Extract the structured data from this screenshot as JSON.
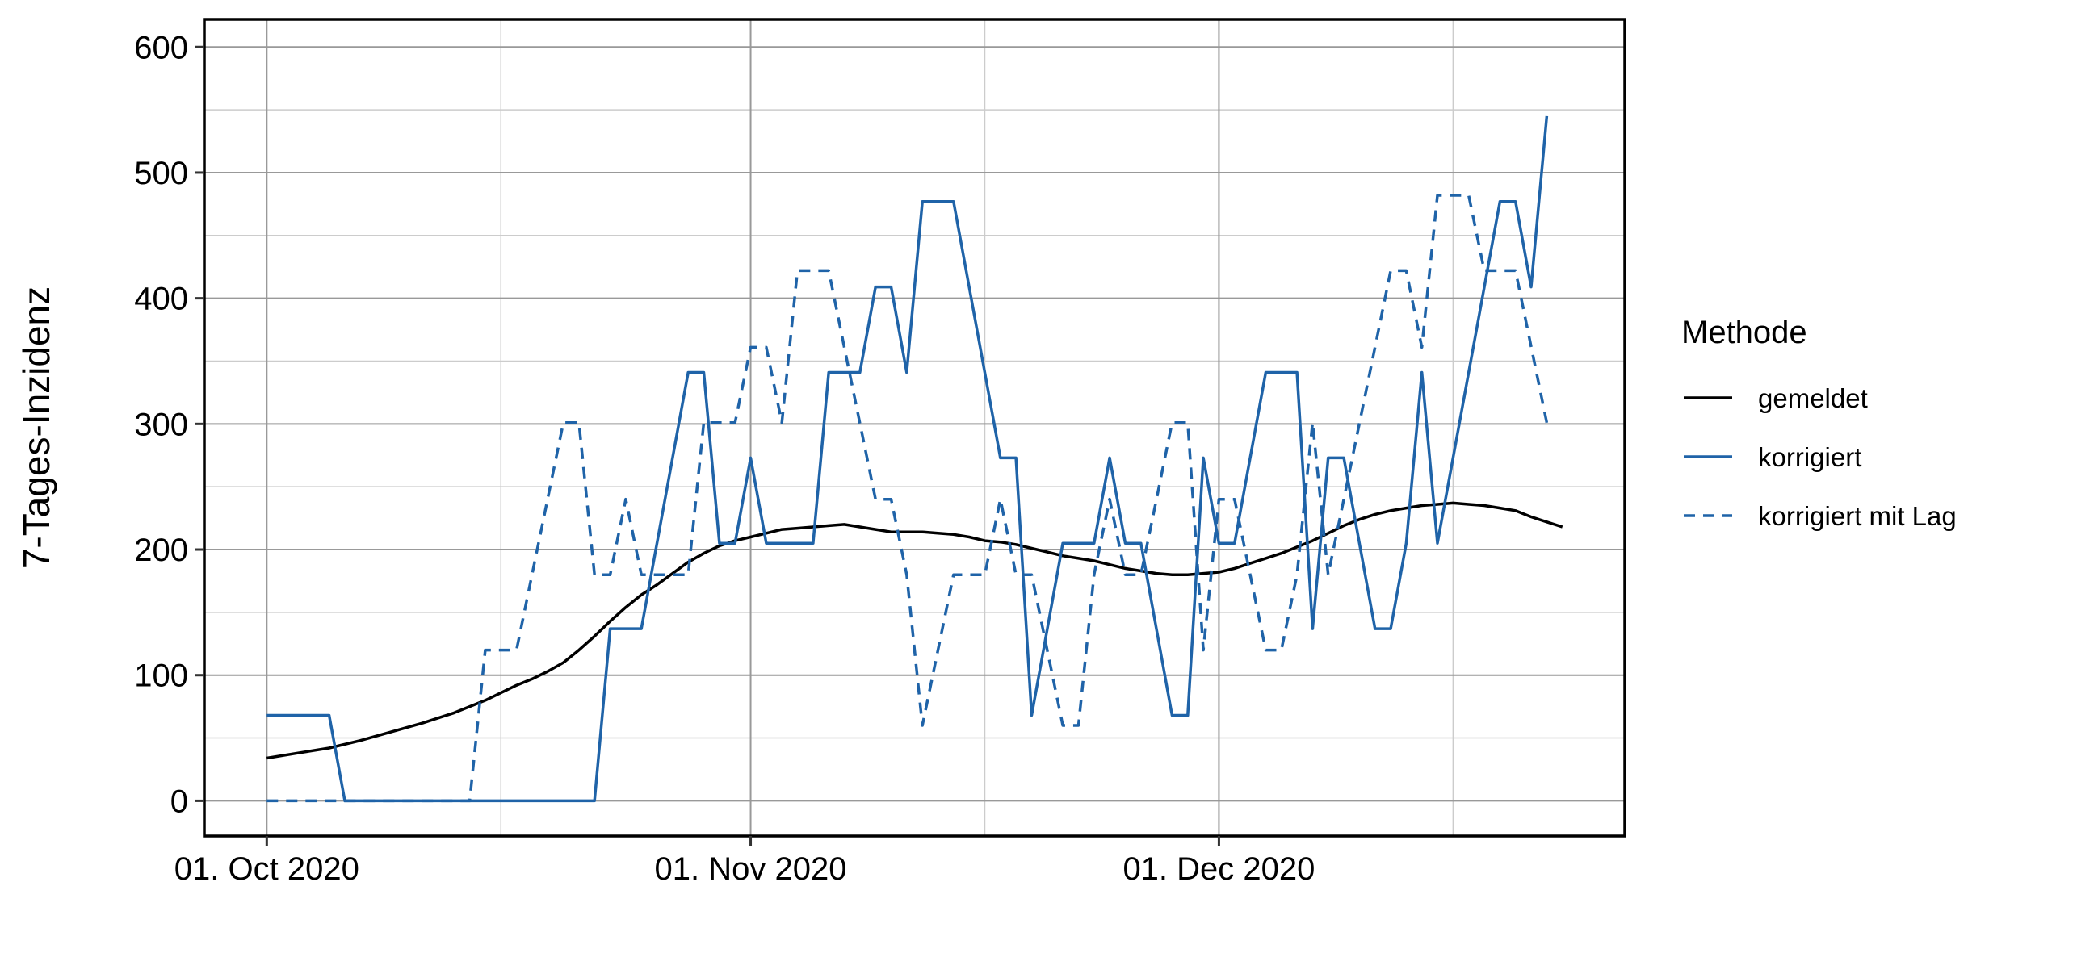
{
  "chart_data": {
    "type": "line",
    "ylabel": "7-Tages-Inzidenz",
    "xlabel": "",
    "x_domain": [
      "2020-09-27",
      "2020-12-27"
    ],
    "ylim": [
      -28,
      622
    ],
    "y_ticks": [
      0,
      100,
      200,
      300,
      400,
      500,
      600
    ],
    "x_ticks": [
      {
        "date": "2020-10-01",
        "label": "01. Oct 2020"
      },
      {
        "date": "2020-11-01",
        "label": "01. Nov 2020"
      },
      {
        "date": "2020-12-01",
        "label": "01. Dec 2020"
      }
    ],
    "x_minor_ticks": [
      "2020-10-16",
      "2020-11-16",
      "2020-12-16"
    ],
    "grid": true,
    "legend": {
      "title": "Methode",
      "position": "right"
    },
    "series": [
      {
        "name": "gemeldet",
        "color": "#000000",
        "dash": "solid",
        "points": [
          [
            "2020-10-01",
            34
          ],
          [
            "2020-10-03",
            38
          ],
          [
            "2020-10-05",
            42
          ],
          [
            "2020-10-07",
            48
          ],
          [
            "2020-10-09",
            55
          ],
          [
            "2020-10-11",
            62
          ],
          [
            "2020-10-13",
            70
          ],
          [
            "2020-10-14",
            75
          ],
          [
            "2020-10-15",
            80
          ],
          [
            "2020-10-17",
            92
          ],
          [
            "2020-10-18",
            97
          ],
          [
            "2020-10-19",
            103
          ],
          [
            "2020-10-20",
            110
          ],
          [
            "2020-10-21",
            120
          ],
          [
            "2020-10-22",
            131
          ],
          [
            "2020-10-23",
            143
          ],
          [
            "2020-10-24",
            154
          ],
          [
            "2020-10-25",
            164
          ],
          [
            "2020-10-26",
            172
          ],
          [
            "2020-10-27",
            181
          ],
          [
            "2020-10-28",
            190
          ],
          [
            "2020-10-29",
            197
          ],
          [
            "2020-10-30",
            203
          ],
          [
            "2020-10-31",
            207
          ],
          [
            "2020-11-01",
            210
          ],
          [
            "2020-11-02",
            213
          ],
          [
            "2020-11-03",
            216
          ],
          [
            "2020-11-04",
            217
          ],
          [
            "2020-11-05",
            218
          ],
          [
            "2020-11-06",
            219
          ],
          [
            "2020-11-07",
            220
          ],
          [
            "2020-11-08",
            218
          ],
          [
            "2020-11-09",
            216
          ],
          [
            "2020-11-10",
            214
          ],
          [
            "2020-11-12",
            214
          ],
          [
            "2020-11-13",
            213
          ],
          [
            "2020-11-14",
            212
          ],
          [
            "2020-11-15",
            210
          ],
          [
            "2020-11-16",
            207
          ],
          [
            "2020-11-17",
            206
          ],
          [
            "2020-11-18",
            204
          ],
          [
            "2020-11-19",
            201
          ],
          [
            "2020-11-20",
            198
          ],
          [
            "2020-11-21",
            195
          ],
          [
            "2020-11-22",
            193
          ],
          [
            "2020-11-23",
            191
          ],
          [
            "2020-11-24",
            188
          ],
          [
            "2020-11-25",
            185
          ],
          [
            "2020-11-26",
            183
          ],
          [
            "2020-11-27",
            181
          ],
          [
            "2020-11-28",
            180
          ],
          [
            "2020-11-29",
            180
          ],
          [
            "2020-11-30",
            181
          ],
          [
            "2020-12-01",
            182
          ],
          [
            "2020-12-02",
            185
          ],
          [
            "2020-12-03",
            189
          ],
          [
            "2020-12-04",
            193
          ],
          [
            "2020-12-05",
            197
          ],
          [
            "2020-12-06",
            202
          ],
          [
            "2020-12-07",
            207
          ],
          [
            "2020-12-08",
            213
          ],
          [
            "2020-12-09",
            219
          ],
          [
            "2020-12-10",
            224
          ],
          [
            "2020-12-11",
            228
          ],
          [
            "2020-12-12",
            231
          ],
          [
            "2020-12-13",
            233
          ],
          [
            "2020-12-14",
            235
          ],
          [
            "2020-12-15",
            236
          ],
          [
            "2020-12-16",
            237
          ],
          [
            "2020-12-17",
            236
          ],
          [
            "2020-12-18",
            235
          ],
          [
            "2020-12-19",
            233
          ],
          [
            "2020-12-20",
            231
          ],
          [
            "2020-12-21",
            226
          ],
          [
            "2020-12-22",
            222
          ],
          [
            "2020-12-23",
            218
          ]
        ]
      },
      {
        "name": "korrigiert",
        "color": "#1f63a8",
        "dash": "solid",
        "points": [
          [
            "2020-10-01",
            68
          ],
          [
            "2020-10-05",
            68
          ],
          [
            "2020-10-06",
            0
          ],
          [
            "2020-10-22",
            0
          ],
          [
            "2020-10-23",
            137
          ],
          [
            "2020-10-25",
            137
          ],
          [
            "2020-10-28",
            341
          ],
          [
            "2020-10-29",
            341
          ],
          [
            "2020-10-30",
            205
          ],
          [
            "2020-10-31",
            205
          ],
          [
            "2020-11-01",
            273
          ],
          [
            "2020-11-02",
            205
          ],
          [
            "2020-11-05",
            205
          ],
          [
            "2020-11-06",
            341
          ],
          [
            "2020-11-08",
            341
          ],
          [
            "2020-11-09",
            409
          ],
          [
            "2020-11-10",
            409
          ],
          [
            "2020-11-11",
            341
          ],
          [
            "2020-11-12",
            477
          ],
          [
            "2020-11-14",
            477
          ],
          [
            "2020-11-17",
            273
          ],
          [
            "2020-11-18",
            273
          ],
          [
            "2020-11-19",
            68
          ],
          [
            "2020-11-21",
            205
          ],
          [
            "2020-11-23",
            205
          ],
          [
            "2020-11-24",
            273
          ],
          [
            "2020-11-25",
            205
          ],
          [
            "2020-11-26",
            205
          ],
          [
            "2020-11-28",
            68
          ],
          [
            "2020-11-29",
            68
          ],
          [
            "2020-11-30",
            273
          ],
          [
            "2020-12-01",
            205
          ],
          [
            "2020-12-02",
            205
          ],
          [
            "2020-12-04",
            341
          ],
          [
            "2020-12-06",
            341
          ],
          [
            "2020-12-07",
            137
          ],
          [
            "2020-12-08",
            273
          ],
          [
            "2020-12-09",
            273
          ],
          [
            "2020-12-11",
            137
          ],
          [
            "2020-12-12",
            137
          ],
          [
            "2020-12-13",
            205
          ],
          [
            "2020-12-14",
            341
          ],
          [
            "2020-12-15",
            205
          ],
          [
            "2020-12-19",
            477
          ],
          [
            "2020-12-20",
            477
          ],
          [
            "2020-12-21",
            409
          ],
          [
            "2020-12-22",
            545
          ]
        ]
      },
      {
        "name": "korrigiert mit Lag",
        "color": "#1f63a8",
        "dash": "dashed",
        "points": [
          [
            "2020-10-01",
            0
          ],
          [
            "2020-10-14",
            0
          ],
          [
            "2020-10-15",
            120
          ],
          [
            "2020-10-17",
            120
          ],
          [
            "2020-10-20",
            301
          ],
          [
            "2020-10-21",
            301
          ],
          [
            "2020-10-22",
            180
          ],
          [
            "2020-10-23",
            180
          ],
          [
            "2020-10-24",
            240
          ],
          [
            "2020-10-25",
            180
          ],
          [
            "2020-10-27",
            180
          ],
          [
            "2020-10-28",
            180
          ],
          [
            "2020-10-29",
            301
          ],
          [
            "2020-10-31",
            301
          ],
          [
            "2020-11-01",
            361
          ],
          [
            "2020-11-02",
            361
          ],
          [
            "2020-11-03",
            301
          ],
          [
            "2020-11-04",
            422
          ],
          [
            "2020-11-06",
            422
          ],
          [
            "2020-11-07",
            361
          ],
          [
            "2020-11-09",
            240
          ],
          [
            "2020-11-10",
            240
          ],
          [
            "2020-11-11",
            180
          ],
          [
            "2020-11-12",
            60
          ],
          [
            "2020-11-14",
            180
          ],
          [
            "2020-11-16",
            180
          ],
          [
            "2020-11-17",
            240
          ],
          [
            "2020-11-18",
            180
          ],
          [
            "2020-11-19",
            180
          ],
          [
            "2020-11-20",
            120
          ],
          [
            "2020-11-21",
            60
          ],
          [
            "2020-11-22",
            60
          ],
          [
            "2020-11-23",
            180
          ],
          [
            "2020-11-24",
            240
          ],
          [
            "2020-11-25",
            180
          ],
          [
            "2020-11-26",
            180
          ],
          [
            "2020-11-27",
            240
          ],
          [
            "2020-11-28",
            301
          ],
          [
            "2020-11-29",
            301
          ],
          [
            "2020-11-30",
            120
          ],
          [
            "2020-12-01",
            240
          ],
          [
            "2020-12-02",
            240
          ],
          [
            "2020-12-03",
            180
          ],
          [
            "2020-12-04",
            120
          ],
          [
            "2020-12-05",
            120
          ],
          [
            "2020-12-06",
            180
          ],
          [
            "2020-12-07",
            301
          ],
          [
            "2020-12-08",
            180
          ],
          [
            "2020-12-09",
            240
          ],
          [
            "2020-12-11",
            361
          ],
          [
            "2020-12-12",
            422
          ],
          [
            "2020-12-13",
            422
          ],
          [
            "2020-12-14",
            361
          ],
          [
            "2020-12-15",
            482
          ],
          [
            "2020-12-17",
            482
          ],
          [
            "2020-12-18",
            422
          ],
          [
            "2020-12-20",
            422
          ],
          [
            "2020-12-22",
            301
          ]
        ]
      }
    ]
  }
}
